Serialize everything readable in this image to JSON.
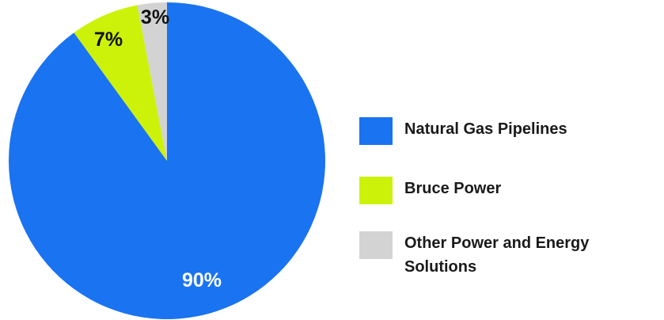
{
  "chart_data": {
    "type": "pie",
    "title": "",
    "slices": [
      {
        "label": "Natural Gas Pipelines",
        "value": 90,
        "value_label": "90%",
        "color": "#1a73f0",
        "label_color": "#ffffff"
      },
      {
        "label": "Bruce Power",
        "value": 7,
        "value_label": "7%",
        "color": "#ccf20a",
        "label_color": "#111111"
      },
      {
        "label": "Other Power and Energy Solutions",
        "value": 3,
        "value_label": "3%",
        "color": "#d3d3d3",
        "label_color": "#111111"
      }
    ],
    "start_angle": "top",
    "direction": "clockwise",
    "legend_position": "right"
  }
}
